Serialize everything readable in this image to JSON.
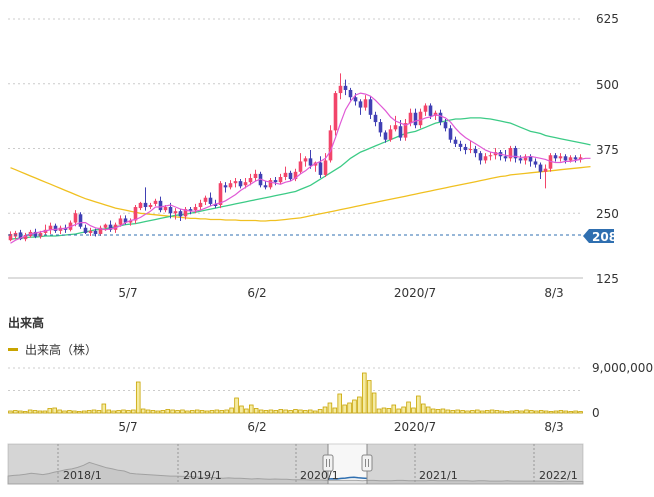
{
  "colors": {
    "up": "#f2456a",
    "down": "#4040b4",
    "ma_short": "#e05ad6",
    "ma_mid": "#3ccb86",
    "ma_long": "#f0c020",
    "volume": "#f5eba0",
    "volume_border": "#c8a400",
    "current_price": "#2f6fb0",
    "grid": "#cccccc"
  },
  "price_axis": {
    "ticks": [
      "625",
      "500",
      "375",
      "250",
      "125"
    ],
    "values": [
      625,
      500,
      375,
      250,
      125
    ]
  },
  "current_price_label": "208",
  "x_labels": [
    "5/7",
    "6/2",
    "2020/7",
    "8/3"
  ],
  "volume_panel": {
    "title": "出来高",
    "legend": "出来高（株）",
    "ticks": [
      "9,000,000",
      "0"
    ]
  },
  "navigator_labels": [
    "2018/1",
    "2019/1",
    "2020/1",
    "2021/1",
    "2022/1"
  ],
  "chart_data": {
    "type": "candlestick",
    "ylim": [
      125,
      625
    ],
    "candles": [
      [
        198,
        210,
        196,
        215
      ],
      [
        205,
        212,
        200,
        216
      ],
      [
        213,
        200,
        198,
        218
      ],
      [
        200,
        208,
        196,
        212
      ],
      [
        206,
        214,
        203,
        218
      ],
      [
        214,
        205,
        202,
        220
      ],
      [
        205,
        212,
        201,
        216
      ],
      [
        212,
        218,
        208,
        228
      ],
      [
        218,
        226,
        210,
        232
      ],
      [
        226,
        216,
        212,
        230
      ],
      [
        216,
        222,
        210,
        226
      ],
      [
        222,
        218,
        212,
        228
      ],
      [
        218,
        232,
        215,
        236
      ],
      [
        232,
        250,
        225,
        256
      ],
      [
        248,
        224,
        220,
        252
      ],
      [
        222,
        212,
        210,
        228
      ],
      [
        212,
        216,
        206,
        222
      ],
      [
        216,
        210,
        205,
        220
      ],
      [
        210,
        222,
        206,
        226
      ],
      [
        222,
        228,
        216,
        230
      ],
      [
        228,
        218,
        214,
        236
      ],
      [
        218,
        228,
        212,
        232
      ],
      [
        228,
        240,
        224,
        246
      ],
      [
        240,
        232,
        228,
        246
      ],
      [
        232,
        235,
        226,
        240
      ],
      [
        236,
        262,
        230,
        266
      ],
      [
        260,
        270,
        256,
        272
      ],
      [
        270,
        262,
        255,
        300
      ],
      [
        262,
        266,
        258,
        270
      ],
      [
        268,
        274,
        264,
        278
      ],
      [
        274,
        256,
        252,
        282
      ],
      [
        256,
        262,
        252,
        266
      ],
      [
        262,
        250,
        240,
        270
      ],
      [
        250,
        254,
        238,
        260
      ],
      [
        254,
        244,
        235,
        258
      ],
      [
        244,
        258,
        238,
        262
      ],
      [
        258,
        254,
        248,
        262
      ],
      [
        256,
        262,
        250,
        268
      ],
      [
        262,
        270,
        256,
        276
      ],
      [
        272,
        280,
        266,
        284
      ],
      [
        280,
        268,
        264,
        290
      ],
      [
        268,
        264,
        260,
        276
      ],
      [
        266,
        308,
        260,
        312
      ],
      [
        304,
        300,
        290,
        310
      ],
      [
        300,
        308,
        296,
        314
      ],
      [
        308,
        312,
        300,
        318
      ],
      [
        312,
        302,
        298,
        316
      ],
      [
        304,
        310,
        298,
        318
      ],
      [
        310,
        318,
        304,
        326
      ],
      [
        318,
        326,
        312,
        334
      ],
      [
        326,
        304,
        300,
        330
      ],
      [
        304,
        300,
        296,
        312
      ],
      [
        300,
        314,
        296,
        318
      ],
      [
        314,
        310,
        304,
        320
      ],
      [
        310,
        320,
        306,
        326
      ],
      [
        320,
        328,
        314,
        340
      ],
      [
        328,
        316,
        312,
        332
      ],
      [
        316,
        330,
        312,
        336
      ],
      [
        330,
        350,
        326,
        366
      ],
      [
        350,
        356,
        340,
        360
      ],
      [
        356,
        342,
        336,
        372
      ],
      [
        342,
        348,
        330,
        350
      ],
      [
        348,
        324,
        318,
        360
      ],
      [
        324,
        352,
        320,
        366
      ],
      [
        352,
        410,
        348,
        420
      ],
      [
        410,
        482,
        400,
        486
      ],
      [
        482,
        496,
        470,
        520
      ],
      [
        496,
        488,
        478,
        508
      ],
      [
        488,
        474,
        468,
        492
      ],
      [
        474,
        466,
        458,
        482
      ],
      [
        466,
        454,
        440,
        470
      ],
      [
        454,
        470,
        448,
        478
      ],
      [
        470,
        440,
        432,
        476
      ],
      [
        440,
        426,
        418,
        446
      ],
      [
        426,
        406,
        398,
        432
      ],
      [
        406,
        392,
        386,
        410
      ],
      [
        392,
        412,
        388,
        420
      ],
      [
        412,
        420,
        408,
        438
      ],
      [
        418,
        396,
        390,
        430
      ],
      [
        396,
        424,
        390,
        432
      ],
      [
        424,
        444,
        418,
        452
      ],
      [
        444,
        420,
        414,
        452
      ],
      [
        420,
        446,
        414,
        452
      ],
      [
        446,
        458,
        438,
        462
      ],
      [
        458,
        438,
        432,
        462
      ],
      [
        438,
        444,
        430,
        448
      ],
      [
        444,
        426,
        420,
        450
      ],
      [
        426,
        414,
        408,
        432
      ],
      [
        414,
        392,
        386,
        420
      ],
      [
        392,
        384,
        378,
        398
      ],
      [
        384,
        378,
        370,
        390
      ],
      [
        378,
        372,
        364,
        384
      ],
      [
        372,
        374,
        366,
        390
      ],
      [
        374,
        366,
        358,
        380
      ],
      [
        366,
        352,
        344,
        370
      ],
      [
        352,
        360,
        346,
        366
      ],
      [
        360,
        362,
        352,
        368
      ],
      [
        362,
        368,
        354,
        376
      ],
      [
        368,
        360,
        352,
        372
      ],
      [
        360,
        356,
        350,
        372
      ],
      [
        356,
        376,
        350,
        380
      ],
      [
        376,
        356,
        348,
        380
      ],
      [
        356,
        352,
        346,
        362
      ],
      [
        352,
        360,
        344,
        364
      ],
      [
        360,
        350,
        340,
        364
      ],
      [
        350,
        344,
        338,
        356
      ],
      [
        344,
        330,
        316,
        348
      ],
      [
        330,
        336,
        298,
        344
      ],
      [
        336,
        362,
        330,
        366
      ],
      [
        362,
        356,
        350,
        366
      ],
      [
        356,
        360,
        350,
        366
      ],
      [
        360,
        352,
        346,
        364
      ],
      [
        352,
        358,
        348,
        362
      ],
      [
        358,
        354,
        348,
        362
      ],
      [
        354,
        358,
        348,
        364
      ]
    ],
    "ma_short": [
      192,
      198,
      202,
      206,
      210,
      212,
      214,
      216,
      218,
      219,
      220,
      221,
      224,
      228,
      232,
      232,
      226,
      222,
      220,
      218,
      220,
      222,
      226,
      232,
      236,
      238,
      242,
      248,
      254,
      262,
      262,
      264,
      266,
      262,
      258,
      256,
      254,
      254,
      256,
      260,
      264,
      268,
      270,
      274,
      280,
      286,
      294,
      300,
      306,
      312,
      316,
      312,
      310,
      308,
      306,
      310,
      312,
      318,
      326,
      332,
      340,
      346,
      350,
      356,
      370,
      396,
      424,
      450,
      466,
      478,
      482,
      480,
      476,
      468,
      458,
      448,
      436,
      428,
      424,
      420,
      424,
      428,
      430,
      434,
      436,
      440,
      438,
      434,
      426,
      414,
      404,
      396,
      390,
      384,
      378,
      372,
      368,
      366,
      364,
      362,
      360,
      360,
      358,
      358,
      360,
      358,
      356,
      354,
      350,
      348,
      348,
      350,
      350,
      352,
      354,
      356,
      356
    ],
    "ma_mid": [
      200,
      201,
      202,
      203,
      204,
      204,
      205,
      206,
      206,
      206,
      207,
      208,
      209,
      210,
      212,
      214,
      216,
      218,
      219,
      220,
      222,
      224,
      226,
      228,
      229,
      230,
      232,
      234,
      236,
      238,
      240,
      242,
      244,
      246,
      247,
      248,
      250,
      252,
      254,
      256,
      258,
      260,
      262,
      264,
      266,
      268,
      270,
      272,
      274,
      276,
      278,
      280,
      282,
      284,
      286,
      288,
      290,
      292,
      296,
      300,
      304,
      310,
      316,
      322,
      328,
      334,
      340,
      348,
      356,
      362,
      368,
      372,
      376,
      380,
      384,
      388,
      392,
      396,
      400,
      404,
      406,
      408,
      412,
      416,
      420,
      424,
      426,
      428,
      430,
      432,
      432,
      433,
      434,
      434,
      434,
      433,
      432,
      430,
      428,
      426,
      424,
      420,
      416,
      412,
      408,
      406,
      404,
      400,
      398,
      396,
      394,
      392,
      390,
      388,
      386,
      384,
      382
    ],
    "ma_long": [
      338,
      334,
      330,
      326,
      322,
      318,
      314,
      310,
      306,
      302,
      298,
      294,
      290,
      286,
      282,
      278,
      275,
      272,
      269,
      266,
      263,
      260,
      258,
      256,
      254,
      252,
      250,
      249,
      248,
      247,
      246,
      245,
      244,
      243,
      242,
      241,
      240,
      240,
      239,
      239,
      238,
      238,
      238,
      237,
      237,
      237,
      236,
      236,
      236,
      236,
      235,
      235,
      236,
      236,
      237,
      238,
      239,
      240,
      241,
      243,
      245,
      247,
      249,
      251,
      253,
      255,
      257,
      259,
      261,
      263,
      265,
      267,
      269,
      271,
      273,
      275,
      277,
      279,
      281,
      283,
      285,
      287,
      289,
      291,
      293,
      295,
      297,
      299,
      301,
      303,
      305,
      307,
      309,
      311,
      313,
      315,
      317,
      319,
      321,
      322,
      324,
      325,
      326,
      327,
      328,
      329,
      330,
      331,
      332,
      333,
      334,
      335,
      336,
      337,
      338,
      339,
      340
    ],
    "current_price": 208,
    "volume": [
      0.4,
      0.5,
      0.4,
      0.3,
      0.6,
      0.5,
      0.4,
      0.4,
      0.9,
      1.0,
      0.6,
      0.4,
      0.5,
      0.4,
      0.3,
      0.4,
      0.5,
      0.6,
      0.5,
      1.8,
      0.6,
      0.4,
      0.5,
      0.6,
      0.5,
      0.6,
      6.2,
      0.8,
      0.6,
      0.5,
      0.4,
      0.5,
      0.7,
      0.6,
      0.5,
      0.6,
      0.4,
      0.5,
      0.6,
      0.5,
      0.4,
      0.5,
      0.6,
      0.5,
      0.6,
      1.0,
      3.0,
      1.4,
      0.8,
      1.6,
      0.9,
      0.6,
      0.5,
      0.6,
      0.5,
      0.7,
      0.6,
      0.5,
      0.7,
      0.6,
      0.5,
      0.6,
      0.4,
      0.7,
      1.2,
      2.0,
      1.0,
      3.8,
      1.6,
      2.0,
      2.6,
      3.2,
      8.0,
      6.5,
      4.0,
      0.8,
      1.0,
      0.9,
      1.6,
      0.8,
      1.2,
      2.2,
      1.0,
      3.4,
      1.8,
      1.2,
      0.8,
      0.7,
      0.8,
      0.6,
      0.5,
      0.6,
      0.5,
      0.4,
      0.5,
      0.6,
      0.4,
      0.5,
      0.6,
      0.5,
      0.4,
      0.3,
      0.4,
      0.5,
      0.4,
      0.6,
      0.5,
      0.4,
      0.5,
      0.4,
      0.3,
      0.4,
      0.5,
      0.4,
      0.3,
      0.4,
      0.3
    ],
    "volume_unit": 1000000,
    "volume_ylim": [
      0,
      9000000
    ],
    "navigator": [
      0.22,
      0.24,
      0.25,
      0.27,
      0.3,
      0.28,
      0.26,
      0.29,
      0.33,
      0.36,
      0.4,
      0.42,
      0.46,
      0.52,
      0.6,
      0.55,
      0.5,
      0.45,
      0.42,
      0.38,
      0.36,
      0.3,
      0.28,
      0.27,
      0.26,
      0.25,
      0.24,
      0.23,
      0.22,
      0.22,
      0.21,
      0.21,
      0.2,
      0.19,
      0.18,
      0.18,
      0.17,
      0.16,
      0.17,
      0.16,
      0.16,
      0.15,
      0.14,
      0.15,
      0.14,
      0.13,
      0.14,
      0.13,
      0.13,
      0.12,
      0.12,
      0.12,
      0.11,
      0.11,
      0.11,
      0.1,
      0.1,
      0.1,
      0.1,
      0.1,
      0.1,
      0.09,
      0.1,
      0.1,
      0.09,
      0.09,
      0.09,
      0.1,
      0.1,
      0.09,
      0.09,
      0.09,
      0.09,
      0.1,
      0.09,
      0.09,
      0.09,
      0.09,
      0.09,
      0.09,
      0.08,
      0.09,
      0.09,
      0.08,
      0.08,
      0.08,
      0.09,
      0.08,
      0.08,
      0.08,
      0.08,
      0.08,
      0.08,
      0.08,
      0.08,
      0.07,
      0.08,
      0.08,
      0.07,
      0.07
    ]
  }
}
